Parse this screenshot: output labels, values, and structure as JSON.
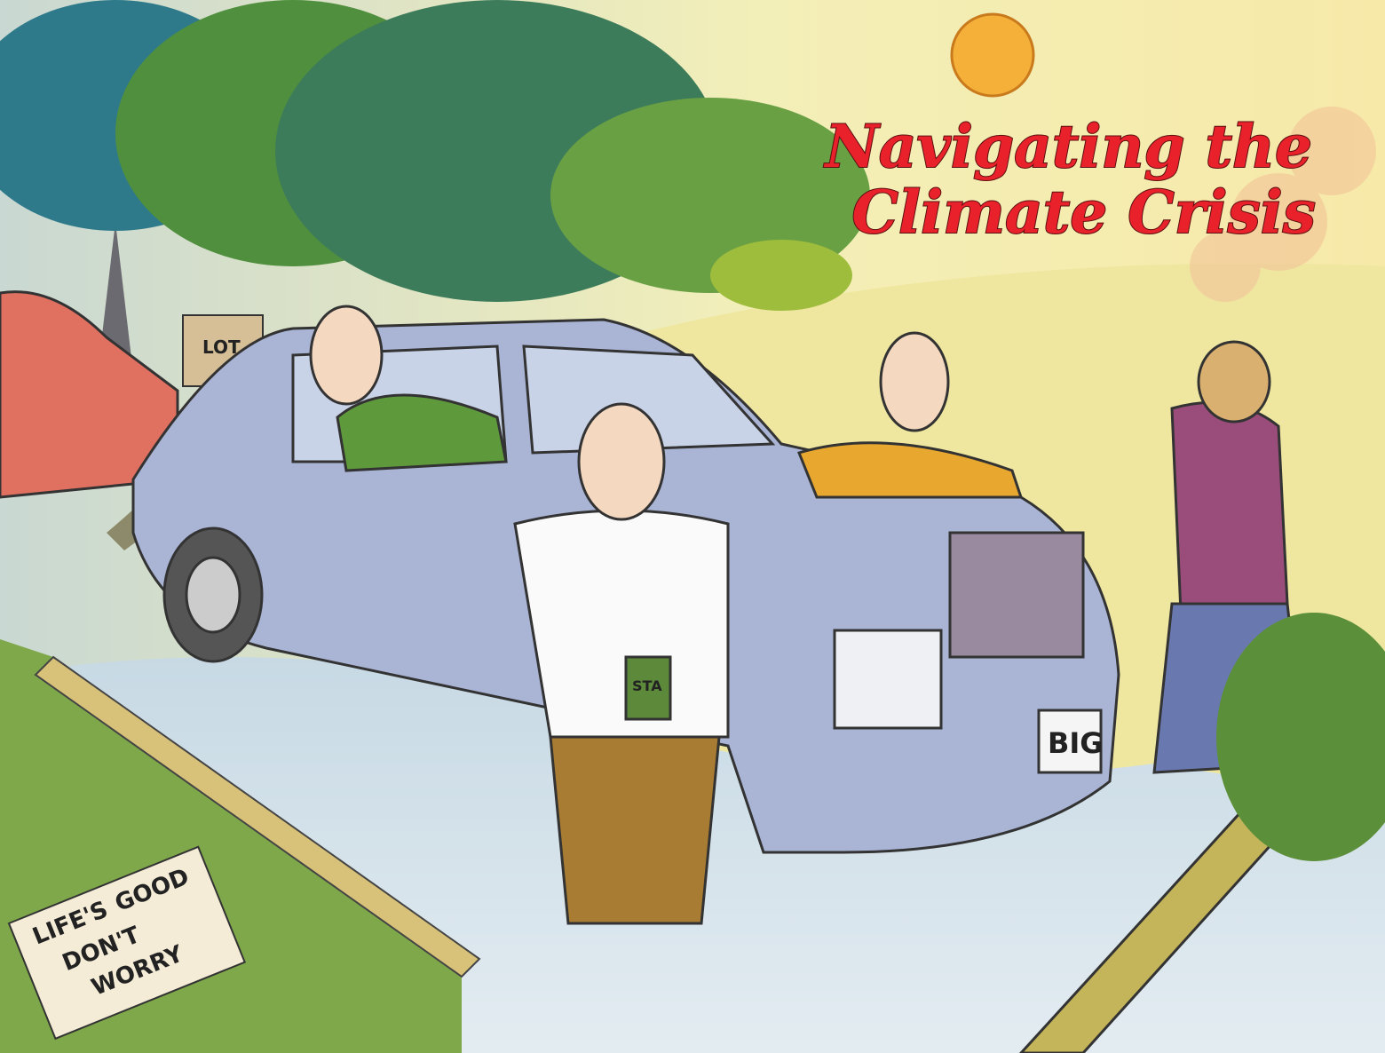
{
  "title": [
    "Navigating the",
    "Climate Crisis"
  ],
  "illustration": {
    "sign_lines": [
      "LIFE'S",
      "GOOD",
      "DON'T",
      "WORRY"
    ],
    "plate": "BIG",
    "lot_sign": "LOT",
    "cup": "STA"
  }
}
